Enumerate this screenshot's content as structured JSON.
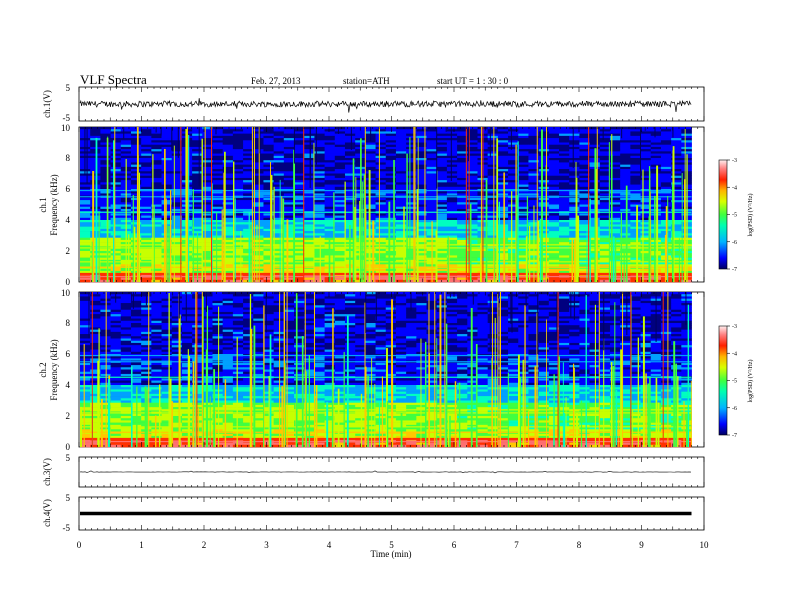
{
  "header": {
    "title": "VLF  Spectra",
    "date": "Feb. 27, 2013",
    "station": "station=ATH",
    "start": "start  UT  =   1 : 30 : 0"
  },
  "chart_data": [
    {
      "type": "line",
      "panel": "ch1-waveform",
      "ylabel": "ch.1(V)",
      "ylim": [
        -5,
        5
      ],
      "yticks": [
        "5",
        "-5"
      ],
      "xlim": [
        0,
        10
      ],
      "baseline": 0,
      "amplitude": 0.4
    },
    {
      "type": "heatmap",
      "panel": "ch1-spectrogram",
      "ylabel": "ch.1\nFrequency (kHz)",
      "ylabel_line1": "ch.1",
      "ylabel_line2": "Frequency (kHz)",
      "ylim": [
        0,
        10
      ],
      "yticks": [
        "0",
        "2",
        "4",
        "6",
        "8",
        "10"
      ],
      "xlim": [
        0,
        9.8
      ],
      "colorbar": {
        "label": "log(PSD) (V²/Hz)",
        "ticks": [
          "-3",
          "-4",
          "-5",
          "-6",
          "-7"
        ],
        "range": [
          -7,
          -3
        ]
      }
    },
    {
      "type": "heatmap",
      "panel": "ch2-spectrogram",
      "ylabel": "ch.2\nFrequency (kHz)",
      "ylabel_line1": "ch.2",
      "ylabel_line2": "Frequency (kHz)",
      "ylim": [
        0,
        10
      ],
      "yticks": [
        "0",
        "2",
        "4",
        "6",
        "8",
        "10"
      ],
      "xlim": [
        0,
        9.8
      ],
      "colorbar": {
        "label": "log(PSD) (V²/Hz)",
        "ticks": [
          "-3",
          "-4",
          "-5",
          "-6",
          "-7"
        ],
        "range": [
          -7,
          -3
        ]
      }
    },
    {
      "type": "line",
      "panel": "ch3-waveform",
      "ylabel": "ch.3(V)",
      "ylim": [
        -5,
        5
      ],
      "yticks": [
        "5"
      ],
      "xlim": [
        0,
        10
      ],
      "baseline": 0
    },
    {
      "type": "line",
      "panel": "ch4-waveform",
      "ylabel": "ch.4(V)",
      "ylim": [
        -5,
        5
      ],
      "yticks": [
        "5",
        "-5"
      ],
      "xlim": [
        0,
        10
      ],
      "baseline": 0
    }
  ],
  "xaxis": {
    "label": "Time  (min)",
    "ticks": [
      "0",
      "1",
      "2",
      "3",
      "4",
      "5",
      "6",
      "7",
      "8",
      "9",
      "10"
    ],
    "range": [
      0,
      10
    ]
  },
  "colors": {
    "colormap": [
      "#000080",
      "#0000ff",
      "#00a0ff",
      "#00ffc0",
      "#40ff40",
      "#c8ff00",
      "#ffc800",
      "#ff3000",
      "#ff7070",
      "#ffffff"
    ]
  }
}
